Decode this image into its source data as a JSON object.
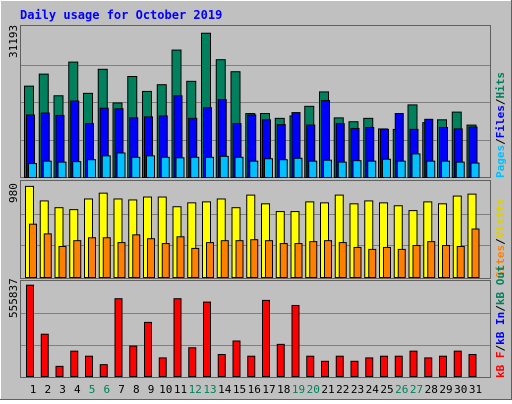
{
  "title": "Daily usage for October 2019",
  "colors": {
    "background": "#c0c0c0",
    "hits": "#00805c",
    "files": "#0000ff",
    "pages": "#00c0ff",
    "visits": "#ffff00",
    "sites": "#ff8000",
    "kb_f": "#ff0000",
    "kb_in": "#0000ff",
    "kb_out": "#00805c",
    "weekend_label": "#00805c",
    "weekday_label": "#000000",
    "title": "#0000ff"
  },
  "chart_data": [
    {
      "type": "bar",
      "panel": "hits-files-pages",
      "scale_label": "31193",
      "ylim": [
        0,
        31193
      ],
      "legend": {
        "pages": "Pages",
        "files": "Files",
        "hits": "Hits",
        "sep": "/"
      },
      "categories": [
        "1",
        "2",
        "3",
        "4",
        "5",
        "6",
        "7",
        "8",
        "9",
        "10",
        "11",
        "12",
        "13",
        "14",
        "15",
        "16",
        "17",
        "18",
        "19",
        "20",
        "21",
        "22",
        "23",
        "24",
        "25",
        "26",
        "27",
        "28",
        "29",
        "30",
        "31"
      ],
      "series": [
        {
          "name": "Hits",
          "values": [
            19000,
            21500,
            17000,
            24000,
            17500,
            22500,
            15500,
            21000,
            17900,
            19300,
            26500,
            20000,
            30000,
            24500,
            22000,
            13300,
            13300,
            12300,
            12800,
            14800,
            17800,
            12400,
            11600,
            12300,
            10100,
            10000,
            15100,
            11400,
            12000,
            13600,
            10900
          ]
        },
        {
          "name": "Files",
          "values": [
            13000,
            13400,
            12900,
            15900,
            11200,
            14400,
            14300,
            12400,
            12600,
            12800,
            17000,
            12300,
            14500,
            16200,
            11200,
            13000,
            12000,
            11000,
            13500,
            10900,
            16000,
            11200,
            10200,
            10400,
            10000,
            13300,
            10000,
            12100,
            10400,
            10100,
            10500
          ]
        },
        {
          "name": "Pages",
          "values": [
            2900,
            3400,
            3200,
            3300,
            3700,
            4500,
            5100,
            4200,
            4500,
            4200,
            4100,
            4200,
            4200,
            4400,
            4200,
            3400,
            3900,
            3700,
            4000,
            3400,
            3600,
            3200,
            3500,
            3400,
            3800,
            3400,
            4900,
            3400,
            3400,
            3200,
            3000
          ]
        }
      ]
    },
    {
      "type": "bar",
      "panel": "visits-sites",
      "scale_label": "980",
      "ylim": [
        0,
        980
      ],
      "legend": {
        "sites": "Sites",
        "visits": "Visits",
        "sep": "/"
      },
      "categories": [
        "1",
        "2",
        "3",
        "4",
        "5",
        "6",
        "7",
        "8",
        "9",
        "10",
        "11",
        "12",
        "13",
        "14",
        "15",
        "16",
        "17",
        "18",
        "19",
        "20",
        "21",
        "22",
        "23",
        "24",
        "25",
        "26",
        "27",
        "28",
        "29",
        "30",
        "31"
      ],
      "series": [
        {
          "name": "Visits",
          "values": [
            940,
            790,
            720,
            700,
            810,
            870,
            810,
            800,
            830,
            830,
            730,
            770,
            780,
            810,
            720,
            850,
            760,
            680,
            680,
            780,
            770,
            850,
            760,
            790,
            770,
            740,
            690,
            780,
            760,
            840,
            860
          ]
        },
        {
          "name": "Sites",
          "values": [
            550,
            450,
            320,
            380,
            410,
            410,
            360,
            440,
            400,
            350,
            420,
            300,
            360,
            380,
            380,
            390,
            380,
            350,
            350,
            370,
            380,
            360,
            310,
            290,
            310,
            290,
            330,
            370,
            330,
            320,
            500
          ]
        }
      ]
    },
    {
      "type": "bar",
      "panel": "kbytes",
      "scale_label": "555837",
      "ylim": [
        0,
        555837
      ],
      "legend": {
        "kb_f": "kB F",
        "kb_in": "kB In",
        "kb_out": "kB Out",
        "sep": "/"
      },
      "categories": [
        "1",
        "2",
        "3",
        "4",
        "5",
        "6",
        "7",
        "8",
        "9",
        "10",
        "11",
        "12",
        "13",
        "14",
        "15",
        "16",
        "17",
        "18",
        "19",
        "20",
        "21",
        "22",
        "23",
        "24",
        "25",
        "26",
        "27",
        "28",
        "29",
        "30",
        "31"
      ],
      "series": [
        {
          "name": "kB F",
          "values": [
            540000,
            250000,
            60000,
            150000,
            120000,
            70000,
            460000,
            180000,
            320000,
            110000,
            460000,
            170000,
            440000,
            130000,
            210000,
            120000,
            450000,
            190000,
            420000,
            120000,
            90000,
            120000,
            90000,
            110000,
            120000,
            120000,
            150000,
            110000,
            120000,
            150000,
            130000
          ]
        }
      ]
    }
  ],
  "x_labels": [
    {
      "label": "1",
      "weekend": false
    },
    {
      "label": "2",
      "weekend": false
    },
    {
      "label": "3",
      "weekend": false
    },
    {
      "label": "4",
      "weekend": false
    },
    {
      "label": "5",
      "weekend": true
    },
    {
      "label": "6",
      "weekend": true
    },
    {
      "label": "7",
      "weekend": false
    },
    {
      "label": "8",
      "weekend": false
    },
    {
      "label": "9",
      "weekend": false
    },
    {
      "label": "10",
      "weekend": false
    },
    {
      "label": "11",
      "weekend": false
    },
    {
      "label": "12",
      "weekend": true
    },
    {
      "label": "13",
      "weekend": true
    },
    {
      "label": "14",
      "weekend": false
    },
    {
      "label": "15",
      "weekend": false
    },
    {
      "label": "16",
      "weekend": false
    },
    {
      "label": "17",
      "weekend": false
    },
    {
      "label": "18",
      "weekend": false
    },
    {
      "label": "19",
      "weekend": true
    },
    {
      "label": "20",
      "weekend": true
    },
    {
      "label": "21",
      "weekend": false
    },
    {
      "label": "22",
      "weekend": false
    },
    {
      "label": "23",
      "weekend": false
    },
    {
      "label": "24",
      "weekend": false
    },
    {
      "label": "25",
      "weekend": false
    },
    {
      "label": "26",
      "weekend": true
    },
    {
      "label": "27",
      "weekend": true
    },
    {
      "label": "28",
      "weekend": false
    },
    {
      "label": "29",
      "weekend": false
    },
    {
      "label": "30",
      "weekend": false
    },
    {
      "label": "31",
      "weekend": false
    }
  ]
}
